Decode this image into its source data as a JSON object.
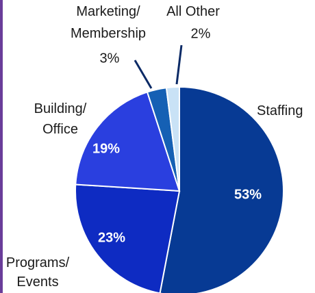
{
  "chart_data": {
    "type": "pie",
    "categories": [
      "Staffing",
      "Programs/ Events",
      "Building/ Office",
      "Marketing/ Membership",
      "All Other"
    ],
    "values": [
      53,
      23,
      19,
      3,
      2
    ],
    "value_labels": [
      "53%",
      "23%",
      "19%",
      "3%",
      "2%"
    ],
    "colors": [
      "#073a94",
      "#0e2bc2",
      "#2a3fdf",
      "#1560b4",
      "#c9e2f6"
    ]
  }
}
